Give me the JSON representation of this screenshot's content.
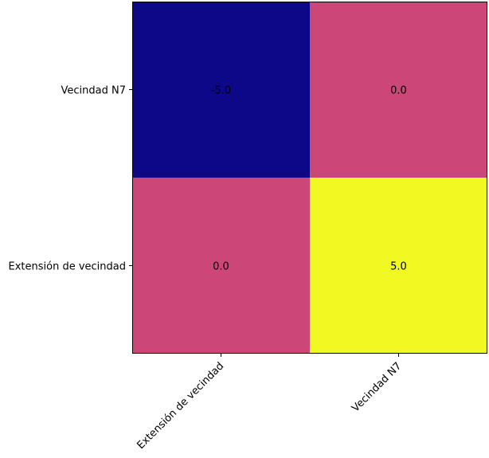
{
  "chart_data": {
    "type": "heatmap",
    "x_categories": [
      "Extensión de vecindad",
      "Vecindad N7"
    ],
    "y_categories": [
      "Vecindad N7",
      "Extensión de vecindad"
    ],
    "values": [
      [
        -5.0,
        0.0
      ],
      [
        0.0,
        5.0
      ]
    ],
    "cell_labels": [
      [
        "-5.0",
        "0.0"
      ],
      [
        "0.0",
        "5.0"
      ]
    ],
    "colors": {
      "low": "#0d0887",
      "mid": "#cc4778",
      "high": "#f0f921"
    },
    "colorscale": "plasma",
    "vmin": -5.0,
    "vmax": 5.0,
    "title": "",
    "xlabel": "",
    "ylabel": ""
  }
}
